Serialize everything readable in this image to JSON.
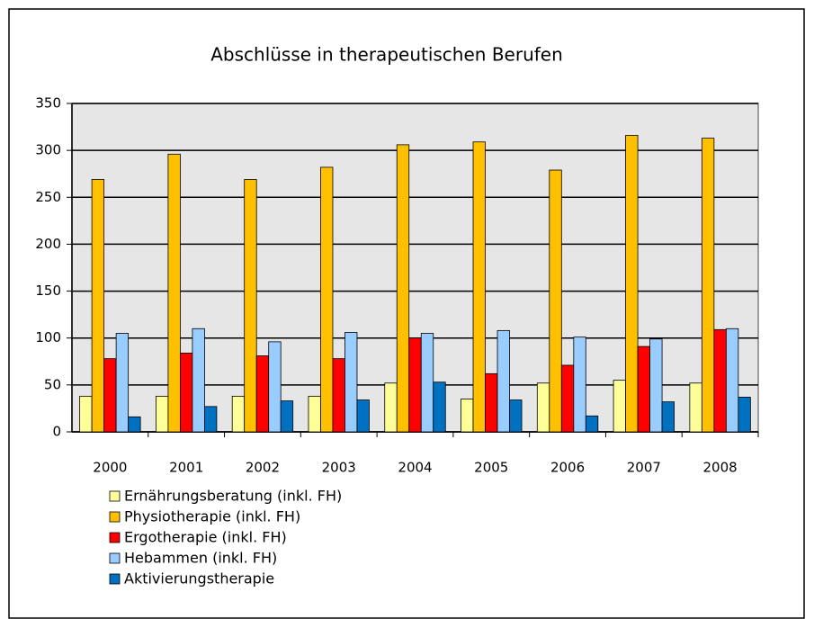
{
  "chart_data": {
    "type": "bar",
    "title": "Abschlüsse in therapeutischen Berufen",
    "categories": [
      "2000",
      "2001",
      "2002",
      "2003",
      "2004",
      "2005",
      "2006",
      "2007",
      "2008"
    ],
    "series": [
      {
        "name": "Ernährungsberatung (inkl. FH)",
        "color": "#ffff99",
        "values": [
          38,
          38,
          38,
          38,
          52,
          35,
          52,
          55,
          52
        ]
      },
      {
        "name": "Physiotherapie (inkl. FH)",
        "color": "#ffc000",
        "values": [
          269,
          296,
          269,
          282,
          306,
          309,
          279,
          316,
          313
        ]
      },
      {
        "name": "Ergotherapie (inkl. FH)",
        "color": "#ff0000",
        "values": [
          78,
          84,
          81,
          78,
          100,
          62,
          71,
          91,
          109
        ]
      },
      {
        "name": "Hebammen (inkl. FH)",
        "color": "#99ccff",
        "values": [
          105,
          110,
          96,
          106,
          105,
          108,
          101,
          99,
          110
        ]
      },
      {
        "name": "Aktivierungstherapie",
        "color": "#0070c0",
        "values": [
          16,
          27,
          33,
          34,
          53,
          34,
          17,
          32,
          37
        ]
      }
    ],
    "ylim": [
      0,
      350
    ],
    "yticks": [
      0,
      50,
      100,
      150,
      200,
      250,
      300,
      350
    ],
    "grid": true
  }
}
